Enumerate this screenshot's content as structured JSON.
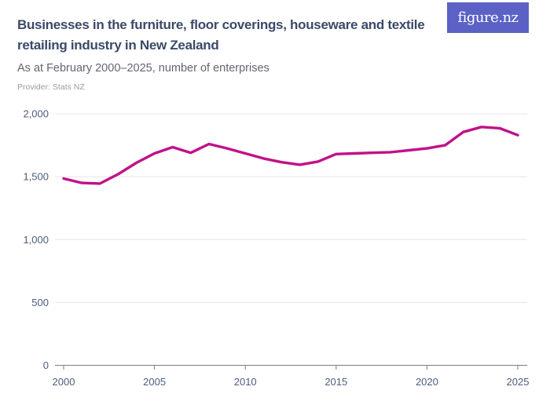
{
  "header": {
    "title": "Businesses in the furniture, floor coverings, houseware and textile retailing industry in New Zealand",
    "subtitle": "As at February 2000–2025, number of enterprises",
    "provider": "Provider: Stats NZ",
    "logo_text": "figure.nz"
  },
  "colors": {
    "line": "#c01289",
    "logo_bg": "#5b61c5",
    "title_text": "#3b4a68",
    "subtitle_text": "#63666e",
    "provider_text": "#9c9ca0",
    "axis_label": "#4c5d7d",
    "gridline": "#e4e4e4",
    "axis_line": "#7d7d7d"
  },
  "chart_data": {
    "type": "line",
    "title": "Businesses in the furniture, floor coverings, houseware and textile retailing industry in New Zealand",
    "subtitle": "As at February 2000–2025, number of enterprises",
    "x": [
      2000,
      2001,
      2002,
      2003,
      2004,
      2005,
      2006,
      2007,
      2008,
      2009,
      2010,
      2011,
      2012,
      2013,
      2014,
      2015,
      2016,
      2017,
      2018,
      2019,
      2020,
      2021,
      2022,
      2023,
      2024,
      2025
    ],
    "series": [
      {
        "name": "Number of enterprises",
        "values": [
          1485,
          1450,
          1445,
          1520,
          1610,
          1685,
          1735,
          1690,
          1760,
          1725,
          1685,
          1645,
          1615,
          1595,
          1620,
          1680,
          1685,
          1690,
          1695,
          1710,
          1725,
          1750,
          1855,
          1895,
          1885,
          1830
        ]
      }
    ],
    "xlabel": "",
    "ylabel": "",
    "xticks": [
      2000,
      2005,
      2010,
      2015,
      2020,
      2025
    ],
    "yticks": [
      0,
      500,
      1000,
      1500,
      2000
    ],
    "ylim": [
      0,
      2000
    ],
    "grid": "horizontal",
    "legend": "none",
    "line_color": "#c01289"
  }
}
